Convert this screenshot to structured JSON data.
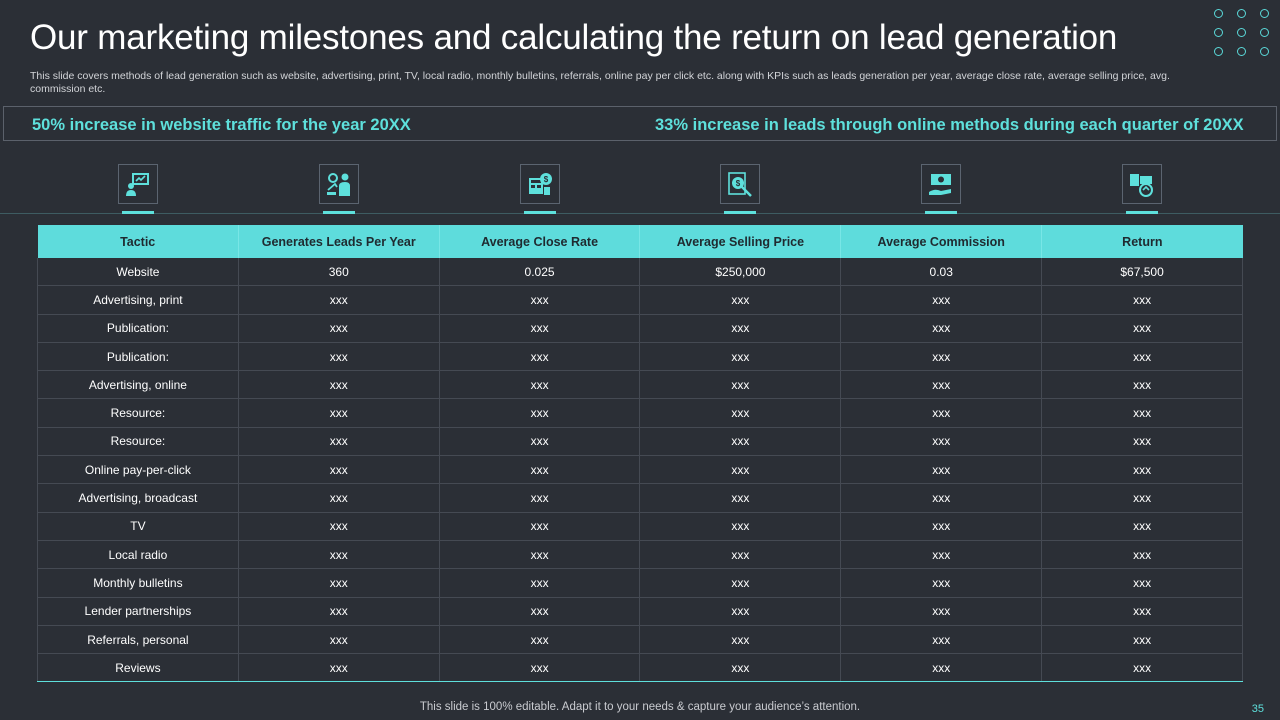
{
  "slide": {
    "title": "Our marketing milestones and calculating the return on lead generation",
    "subtitle": "This slide covers methods of lead generation such as website, advertising, print, TV,  local radio, monthly bulletins, referrals, online pay per click etc.  along with KPIs such as leads generation per year, average close rate, average selling price, avg. commission etc.",
    "footer": "This slide is 100% editable. Adapt it to your needs & capture your audience’s attention.",
    "page_number": "35"
  },
  "milestones": {
    "left": "50% increase in website traffic for the year 20XX",
    "right": "33% increase in leads through online methods during each quarter of 20XX"
  },
  "icons": [
    "lead-generation-icon",
    "close-rate-icon",
    "selling-price-icon",
    "commission-icon",
    "money-hand-icon",
    "return-icon"
  ],
  "colors": {
    "accent": "#5ee0dc",
    "background": "#2b2f36",
    "header_bg": "#5edcdc"
  },
  "table": {
    "headers": [
      "Tactic",
      "Generates Leads Per Year",
      "Average Close Rate",
      "Average Selling Price",
      "Average Commission",
      "Return"
    ],
    "rows": [
      [
        "Website",
        "360",
        "0.025",
        "$250,000",
        "0.03",
        "$67,500"
      ],
      [
        "Advertising, print",
        "xxx",
        "xxx",
        "xxx",
        "xxx",
        "xxx"
      ],
      [
        "Publication:",
        "xxx",
        "xxx",
        "xxx",
        "xxx",
        "xxx"
      ],
      [
        "Publication:",
        "xxx",
        "xxx",
        "xxx",
        "xxx",
        "xxx"
      ],
      [
        "Advertising, online",
        "xxx",
        "xxx",
        "xxx",
        "xxx",
        "xxx"
      ],
      [
        "Resource:",
        "xxx",
        "xxx",
        "xxx",
        "xxx",
        "xxx"
      ],
      [
        "Resource:",
        "xxx",
        "xxx",
        "xxx",
        "xxx",
        "xxx"
      ],
      [
        "Online pay-per-click",
        "xxx",
        "xxx",
        "xxx",
        "xxx",
        "xxx"
      ],
      [
        "Advertising, broadcast",
        "xxx",
        "xxx",
        "xxx",
        "xxx",
        "xxx"
      ],
      [
        "TV",
        "xxx",
        "xxx",
        "xxx",
        "xxx",
        "xxx"
      ],
      [
        "Local radio",
        "xxx",
        "xxx",
        "xxx",
        "xxx",
        "xxx"
      ],
      [
        "Monthly bulletins",
        "xxx",
        "xxx",
        "xxx",
        "xxx",
        "xxx"
      ],
      [
        "Lender partnerships",
        "xxx",
        "xxx",
        "xxx",
        "xxx",
        "xxx"
      ],
      [
        "Referrals, personal",
        "xxx",
        "xxx",
        "xxx",
        "xxx",
        "xxx"
      ],
      [
        "Reviews",
        "xxx",
        "xxx",
        "xxx",
        "xxx",
        "xxx"
      ]
    ]
  }
}
